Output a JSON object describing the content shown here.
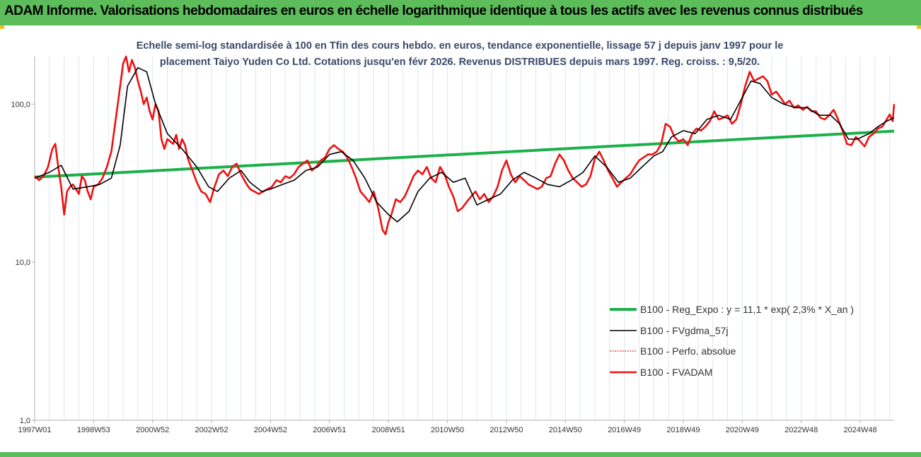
{
  "banner": {
    "title": "ADAM Informe. Valorisations hebdomadaires en euros en échelle logarithmique identique à tous les actifs avec les revenus connus distribués"
  },
  "colors": {
    "banner": "#5cbd5a",
    "trend": "#1db04a",
    "smooth": "#000000",
    "perf": "#cc0000",
    "fvadam": "#ee1111"
  },
  "chart_data": {
    "type": "line",
    "title": "Echelle semi-log standardisée à 100 en Tfin des cours hebdo. en euros, tendance exponentielle, lissage 57 j depuis janv 1997 pour le placement Taiyo Yuden Co Ltd. Cotations jusqu'en févr 2026. Revenus DISTRIBUES depuis mars 1997. Reg. croiss. : 9,5/20.",
    "y_scale": "log",
    "ylim": [
      1,
      200
    ],
    "xlim": [
      1997.0,
      2026.15
    ],
    "y_ticks": [
      {
        "value": 1,
        "label": "1,0"
      },
      {
        "value": 10,
        "label": "10,0"
      },
      {
        "value": 100,
        "label": "100,0"
      }
    ],
    "x_ticks": [
      {
        "value": 1997.0,
        "label": "1997W01"
      },
      {
        "value": 1999.0,
        "label": "1998W53"
      },
      {
        "value": 2001.0,
        "label": "2000W52"
      },
      {
        "value": 2003.0,
        "label": "2002W52"
      },
      {
        "value": 2005.0,
        "label": "2004W52"
      },
      {
        "value": 2007.0,
        "label": "2006W51"
      },
      {
        "value": 2009.0,
        "label": "2008W51"
      },
      {
        "value": 2011.0,
        "label": "2010W50"
      },
      {
        "value": 2013.0,
        "label": "2012W50"
      },
      {
        "value": 2015.0,
        "label": "2014W50"
      },
      {
        "value": 2017.0,
        "label": "2016W49"
      },
      {
        "value": 2019.0,
        "label": "2018W49"
      },
      {
        "value": 2021.0,
        "label": "2020W49"
      },
      {
        "value": 2023.0,
        "label": "2022W48"
      },
      {
        "value": 2025.0,
        "label": "2024W48"
      }
    ],
    "legend_position": "bottom-right",
    "series": [
      {
        "name": "B100 - Reg_Expo : y = 11,1 * exp( 2,3% *  X_an )",
        "kind": "trend",
        "x": [
          1997.0,
          2026.15
        ],
        "y": [
          34.5,
          67.5
        ]
      },
      {
        "name": "B100 - FVgdma_57j",
        "kind": "smooth",
        "x": [
          1997.0,
          1997.5,
          1997.9,
          1998.3,
          1998.8,
          1999.2,
          1999.6,
          1999.9,
          2000.15,
          2000.5,
          2000.8,
          2001.1,
          2001.5,
          2002.0,
          2002.5,
          2002.9,
          2003.2,
          2003.6,
          2004.0,
          2004.3,
          2004.7,
          2005.0,
          2005.4,
          2005.8,
          2006.2,
          2006.6,
          2007.0,
          2007.4,
          2007.8,
          2008.2,
          2008.6,
          2009.0,
          2009.3,
          2009.7,
          2010.0,
          2010.4,
          2010.8,
          2011.2,
          2011.6,
          2012.0,
          2012.4,
          2012.8,
          2013.2,
          2013.6,
          2014.0,
          2014.4,
          2014.8,
          2015.2,
          2015.6,
          2016.0,
          2016.4,
          2016.8,
          2017.2,
          2017.6,
          2018.0,
          2018.3,
          2018.6,
          2019.0,
          2019.4,
          2019.8,
          2020.2,
          2020.6,
          2021.0,
          2021.3,
          2021.6,
          2022.0,
          2022.4,
          2022.8,
          2023.2,
          2023.6,
          2024.0,
          2024.3,
          2024.6,
          2024.9,
          2025.3,
          2025.6,
          2025.9,
          2026.15
        ],
        "y": [
          34,
          37,
          41,
          29,
          30,
          31,
          34,
          55,
          130,
          170,
          160,
          100,
          65,
          52,
          40,
          30,
          28,
          34,
          38,
          32,
          28,
          29,
          31,
          33,
          38,
          40,
          48,
          50,
          44,
          34,
          24,
          20,
          18,
          21,
          28,
          34,
          37,
          32,
          34,
          23,
          25,
          27,
          33,
          37,
          34,
          31,
          30,
          33,
          37,
          47,
          40,
          32,
          34,
          40,
          47,
          50,
          62,
          68,
          65,
          80,
          85,
          80,
          110,
          140,
          135,
          110,
          100,
          95,
          95,
          85,
          85,
          75,
          60,
          60,
          65,
          72,
          78,
          82
        ]
      },
      {
        "name": "B100 - Perfo. absolue",
        "kind": "perf",
        "x": [],
        "y": []
      },
      {
        "name": "B100 - FVADAM",
        "kind": "fvadam",
        "x": [
          1997.0,
          1997.15,
          1997.3,
          1997.45,
          1997.6,
          1997.7,
          1997.8,
          1997.9,
          1998.0,
          1998.1,
          1998.2,
          1998.3,
          1998.4,
          1998.5,
          1998.6,
          1998.7,
          1998.8,
          1998.9,
          1999.0,
          1999.15,
          1999.3,
          1999.45,
          1999.6,
          1999.75,
          1999.9,
          2000.0,
          2000.1,
          2000.2,
          2000.3,
          2000.4,
          2000.5,
          2000.6,
          2000.7,
          2000.8,
          2000.9,
          2001.0,
          2001.1,
          2001.2,
          2001.3,
          2001.4,
          2001.5,
          2001.6,
          2001.7,
          2001.8,
          2001.9,
          2002.0,
          2002.1,
          2002.2,
          2002.35,
          2002.5,
          2002.65,
          2002.8,
          2002.95,
          2003.1,
          2003.25,
          2003.4,
          2003.55,
          2003.7,
          2003.85,
          2004.0,
          2004.15,
          2004.3,
          2004.45,
          2004.6,
          2004.75,
          2004.9,
          2005.05,
          2005.2,
          2005.35,
          2005.5,
          2005.65,
          2005.8,
          2005.95,
          2006.1,
          2006.25,
          2006.4,
          2006.55,
          2006.7,
          2006.85,
          2007.0,
          2007.15,
          2007.3,
          2007.45,
          2007.6,
          2007.75,
          2007.9,
          2008.05,
          2008.2,
          2008.35,
          2008.5,
          2008.65,
          2008.8,
          2008.9,
          2009.0,
          2009.1,
          2009.25,
          2009.4,
          2009.55,
          2009.7,
          2009.85,
          2010.0,
          2010.15,
          2010.3,
          2010.45,
          2010.6,
          2010.75,
          2010.9,
          2011.05,
          2011.2,
          2011.35,
          2011.5,
          2011.65,
          2011.8,
          2011.95,
          2012.1,
          2012.25,
          2012.4,
          2012.55,
          2012.7,
          2012.85,
          2013.0,
          2013.15,
          2013.3,
          2013.45,
          2013.6,
          2013.75,
          2013.9,
          2014.05,
          2014.2,
          2014.35,
          2014.5,
          2014.65,
          2014.8,
          2014.95,
          2015.1,
          2015.25,
          2015.4,
          2015.55,
          2015.7,
          2015.85,
          2016.0,
          2016.15,
          2016.3,
          2016.45,
          2016.6,
          2016.75,
          2016.9,
          2017.05,
          2017.2,
          2017.35,
          2017.5,
          2017.65,
          2017.8,
          2017.95,
          2018.1,
          2018.25,
          2018.4,
          2018.55,
          2018.7,
          2018.85,
          2019.0,
          2019.15,
          2019.3,
          2019.45,
          2019.6,
          2019.75,
          2019.9,
          2020.05,
          2020.2,
          2020.35,
          2020.5,
          2020.65,
          2020.8,
          2020.95,
          2021.1,
          2021.25,
          2021.4,
          2021.55,
          2021.7,
          2021.85,
          2022.0,
          2022.15,
          2022.3,
          2022.45,
          2022.6,
          2022.75,
          2022.9,
          2023.05,
          2023.2,
          2023.35,
          2023.5,
          2023.65,
          2023.8,
          2023.95,
          2024.1,
          2024.25,
          2024.4,
          2024.55,
          2024.7,
          2024.85,
          2025.0,
          2025.15,
          2025.3,
          2025.45,
          2025.6,
          2025.75,
          2025.9,
          2026.0,
          2026.1,
          2026.15
        ],
        "y": [
          35,
          33,
          35,
          40,
          52,
          56,
          40,
          30,
          20,
          28,
          30,
          31,
          29,
          27,
          35,
          33,
          28,
          25,
          30,
          31,
          34,
          40,
          50,
          80,
          130,
          180,
          200,
          160,
          190,
          170,
          140,
          120,
          100,
          110,
          90,
          80,
          100,
          90,
          60,
          52,
          60,
          58,
          56,
          64,
          52,
          60,
          55,
          45,
          38,
          32,
          28,
          27,
          24,
          30,
          36,
          38,
          35,
          40,
          42,
          36,
          32,
          29,
          28,
          27,
          28,
          29,
          30,
          33,
          32,
          35,
          34,
          36,
          40,
          42,
          44,
          38,
          40,
          44,
          46,
          52,
          55,
          52,
          50,
          46,
          40,
          34,
          28,
          26,
          24,
          28,
          22,
          16,
          15,
          18,
          20,
          25,
          24,
          26,
          30,
          35,
          38,
          36,
          40,
          34,
          32,
          40,
          36,
          30,
          26,
          21,
          22,
          24,
          26,
          28,
          25,
          27,
          24,
          26,
          30,
          38,
          44,
          36,
          32,
          35,
          33,
          31,
          30,
          29,
          30,
          34,
          35,
          42,
          48,
          44,
          38,
          34,
          32,
          30,
          31,
          35,
          45,
          50,
          44,
          38,
          34,
          30,
          32,
          34,
          36,
          40,
          44,
          46,
          48,
          48,
          50,
          56,
          75,
          72,
          62,
          58,
          60,
          55,
          65,
          70,
          68,
          72,
          78,
          90,
          80,
          82,
          85,
          75,
          80,
          100,
          130,
          160,
          140,
          145,
          150,
          140,
          115,
          120,
          110,
          100,
          105,
          95,
          98,
          92,
          96,
          90,
          90,
          82,
          80,
          85,
          92,
          80,
          68,
          56,
          55,
          62,
          58,
          54,
          62,
          65,
          70,
          72,
          80,
          86,
          78,
          100
        ]
      }
    ]
  }
}
